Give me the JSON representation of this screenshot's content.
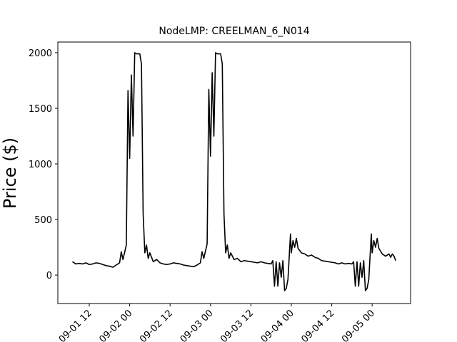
{
  "chart_data": {
    "type": "line",
    "title": "NodeLMP: CREELMAN_6_N014",
    "y_label": "Price ($)",
    "color": "#000000",
    "x": [
      "09-01 07:00",
      "09-01 08:00",
      "09-01 09:00",
      "09-01 10:00",
      "09-01 11:00",
      "09-01 12:00",
      "09-01 13:00",
      "09-01 14:00",
      "09-01 15:00",
      "09-01 16:00",
      "09-01 17:00",
      "09-01 18:00",
      "09-01 19:00",
      "09-01 20:00",
      "09-01 21:00",
      "09-01 21:30",
      "09-01 22:00",
      "09-01 23:00",
      "09-01 23:30",
      "09-02 00:00",
      "09-02 00:30",
      "09-02 01:00",
      "09-02 01:30",
      "09-02 02:00",
      "09-02 03:00",
      "09-02 03:30",
      "09-02 04:00",
      "09-02 04:30",
      "09-02 05:00",
      "09-02 05:30",
      "09-02 06:00",
      "09-02 07:00",
      "09-02 08:00",
      "09-02 09:00",
      "09-02 10:00",
      "09-02 11:00",
      "09-02 12:00",
      "09-02 13:00",
      "09-02 14:00",
      "09-02 15:00",
      "09-02 16:00",
      "09-02 17:00",
      "09-02 18:00",
      "09-02 19:00",
      "09-02 20:00",
      "09-02 21:00",
      "09-02 21:30",
      "09-02 22:00",
      "09-02 23:00",
      "09-02 23:30",
      "09-03 00:00",
      "09-03 00:30",
      "09-03 01:00",
      "09-03 01:30",
      "09-03 02:00",
      "09-03 03:00",
      "09-03 03:30",
      "09-03 04:00",
      "09-03 04:30",
      "09-03 05:00",
      "09-03 05:30",
      "09-03 06:00",
      "09-03 07:00",
      "09-03 08:00",
      "09-03 09:00",
      "09-03 10:00",
      "09-03 11:00",
      "09-03 12:00",
      "09-03 13:00",
      "09-03 14:00",
      "09-03 15:00",
      "09-03 16:00",
      "09-03 17:00",
      "09-03 18:00",
      "09-03 18:30",
      "09-03 19:00",
      "09-03 19:30",
      "09-03 20:00",
      "09-03 20:30",
      "09-03 21:00",
      "09-03 21:30",
      "09-03 22:00",
      "09-03 22:30",
      "09-03 23:00",
      "09-03 23:45",
      "09-04 00:00",
      "09-04 00:30",
      "09-04 01:00",
      "09-04 01:30",
      "09-04 02:00",
      "09-04 03:00",
      "09-04 04:00",
      "09-04 05:00",
      "09-04 06:00",
      "09-04 07:00",
      "09-04 08:00",
      "09-04 09:00",
      "09-04 10:00",
      "09-04 11:00",
      "09-04 12:00",
      "09-04 13:00",
      "09-04 14:00",
      "09-04 15:00",
      "09-04 16:00",
      "09-04 17:00",
      "09-04 18:00",
      "09-04 18:30",
      "09-04 19:00",
      "09-04 19:30",
      "09-04 20:00",
      "09-04 20:30",
      "09-04 21:00",
      "09-04 21:30",
      "09-04 22:00",
      "09-04 22:30",
      "09-04 23:00",
      "09-04 23:45",
      "09-05 00:00",
      "09-05 00:30",
      "09-05 01:00",
      "09-05 01:30",
      "09-05 02:00",
      "09-05 03:00",
      "09-05 04:00",
      "09-05 05:00",
      "09-05 05:30",
      "09-05 06:00",
      "09-05 06:30",
      "09-05 07:00"
    ],
    "values": [
      120,
      100,
      105,
      100,
      110,
      95,
      100,
      110,
      105,
      95,
      85,
      80,
      70,
      90,
      110,
      210,
      140,
      270,
      1660,
      1050,
      1800,
      1250,
      2000,
      1990,
      1990,
      1900,
      550,
      200,
      270,
      150,
      200,
      120,
      140,
      110,
      100,
      95,
      100,
      110,
      105,
      100,
      90,
      85,
      80,
      75,
      90,
      110,
      210,
      150,
      280,
      1670,
      1070,
      1820,
      1250,
      2000,
      1990,
      1990,
      1900,
      550,
      200,
      270,
      150,
      200,
      140,
      150,
      120,
      130,
      125,
      120,
      115,
      110,
      120,
      110,
      105,
      100,
      130,
      -100,
      120,
      -100,
      110,
      -20,
      130,
      -140,
      -120,
      -40,
      370,
      200,
      310,
      250,
      330,
      240,
      200,
      190,
      170,
      180,
      160,
      150,
      130,
      125,
      120,
      115,
      110,
      100,
      110,
      100,
      105,
      100,
      120,
      -100,
      120,
      -100,
      110,
      -20,
      130,
      -140,
      -120,
      -40,
      370,
      200,
      310,
      250,
      330,
      240,
      190,
      170,
      190,
      160,
      190,
      170,
      130
    ],
    "xlim": [
      "09-01 02:40",
      "09-05 11:25"
    ],
    "xticks": [
      {
        "value": "09-01 12:00",
        "label": "09-01 12"
      },
      {
        "value": "09-02 00:00",
        "label": "09-02 00"
      },
      {
        "value": "09-02 12:00",
        "label": "09-02 12"
      },
      {
        "value": "09-03 00:00",
        "label": "09-03 00"
      },
      {
        "value": "09-03 12:00",
        "label": "09-03 12"
      },
      {
        "value": "09-04 00:00",
        "label": "09-04 00"
      },
      {
        "value": "09-04 12:00",
        "label": "09-04 12"
      },
      {
        "value": "09-05 00:00",
        "label": "09-05 00"
      }
    ],
    "ylim": [
      -256,
      2096
    ],
    "yticks": [
      0,
      500,
      1000,
      1500,
      2000
    ]
  }
}
